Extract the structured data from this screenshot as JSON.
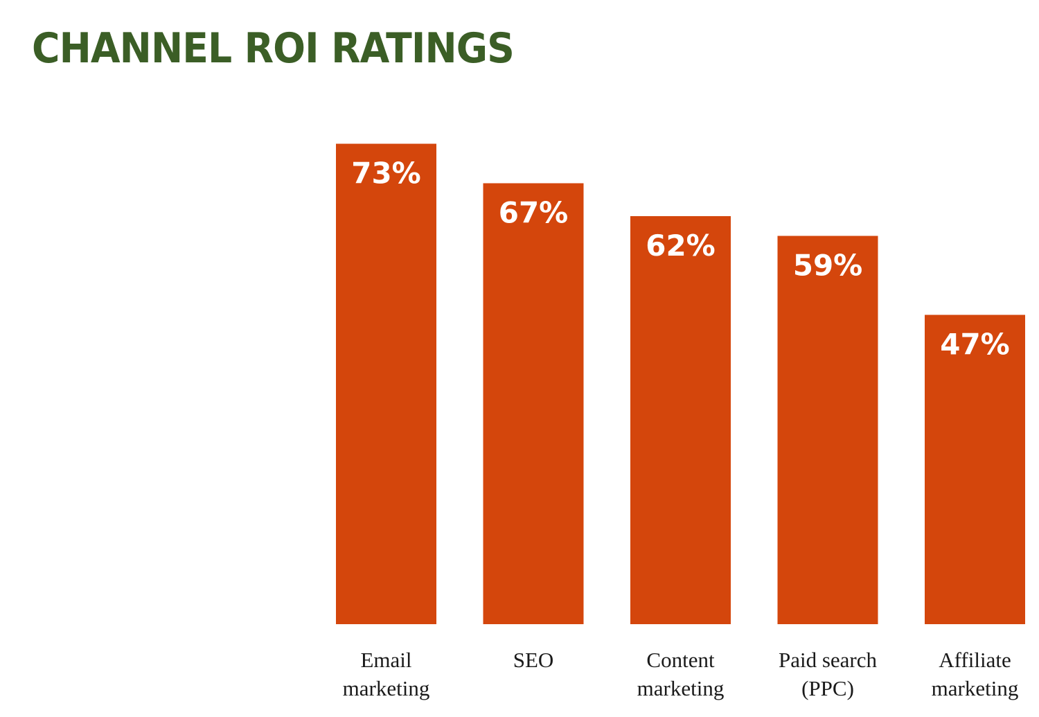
{
  "title": "CHANNEL ROI RATINGS",
  "colors": {
    "title": "#3b5e26",
    "bar": "#d4460c",
    "label": "#ffffff",
    "category": "#1a1a1a"
  },
  "chart_data": {
    "type": "bar",
    "title": "CHANNEL ROI RATINGS",
    "categories": [
      [
        "Email",
        "marketing"
      ],
      [
        "SEO"
      ],
      [
        "Content",
        "marketing"
      ],
      [
        "Paid search",
        "(PPC)"
      ],
      [
        "Affiliate",
        "marketing"
      ]
    ],
    "values": [
      73,
      67,
      62,
      59,
      47
    ],
    "value_labels": [
      "73%",
      "67%",
      "62%",
      "59%",
      "47%"
    ],
    "ylim": [
      0,
      100
    ],
    "grid": false,
    "legend": "none"
  }
}
